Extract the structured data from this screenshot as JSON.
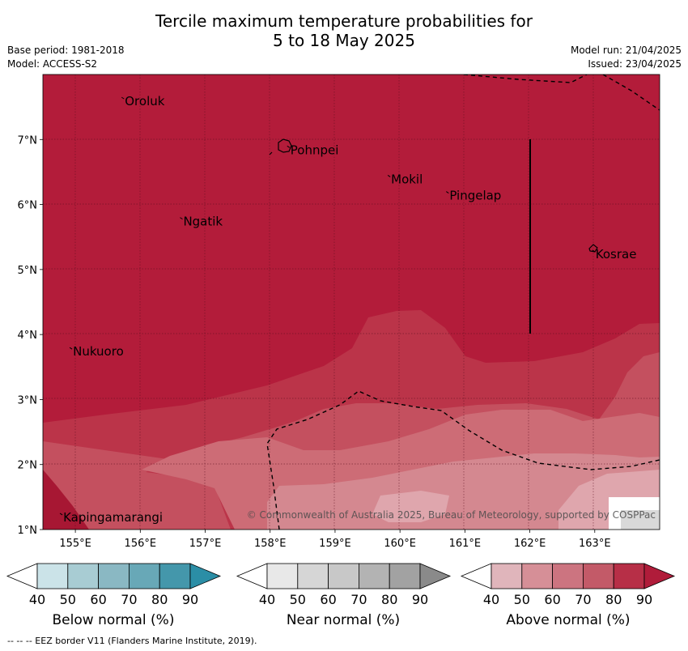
{
  "header": {
    "title_line1": "Tercile maximum temperature probabilities for",
    "title_line2": "5 to 18 May 2025",
    "base_period": "Base period: 1981-2018",
    "model": "Model: ACCESS-S2",
    "model_run": "Model run: 21/04/2025",
    "issued": "Issued: 23/04/2025"
  },
  "map": {
    "lon_range": [
      154.5,
      164
    ],
    "lat_range": [
      1,
      8
    ],
    "lon_ticks": [
      "155°E",
      "156°E",
      "157°E",
      "158°E",
      "159°E",
      "160°E",
      "161°E",
      "162°E",
      "163°E"
    ],
    "lat_ticks": [
      "1°N",
      "2°N",
      "3°N",
      "4°N",
      "5°N",
      "6°N",
      "7°N"
    ],
    "places": [
      {
        "name": "Oroluk",
        "lon": 155.75,
        "lat": 7.6
      },
      {
        "name": "Pohnpei",
        "lon": 158.3,
        "lat": 6.85
      },
      {
        "name": "Mokil",
        "lon": 159.85,
        "lat": 6.4
      },
      {
        "name": "Pingelap",
        "lon": 160.75,
        "lat": 6.15
      },
      {
        "name": "Ngatik",
        "lon": 156.65,
        "lat": 5.75
      },
      {
        "name": "Kosrae",
        "lon": 163.0,
        "lat": 5.25
      },
      {
        "name": "Nukuoro",
        "lon": 154.95,
        "lat": 3.75
      },
      {
        "name": "Kapingamarangi",
        "lon": 154.8,
        "lat": 1.2
      }
    ],
    "copyright": "© Commonwealth of Australia 2025, Bureau of Meteorology, supported by COSPPac",
    "colors": {
      "above_80_90": "#b31c3a",
      "above_70_80": "#bb3449",
      "above_60_70": "#c4505f",
      "above_50_60": "#cd6c76",
      "above_40_50": "#d48890",
      "above_edge": "#dfa6ad"
    }
  },
  "colorbars": [
    {
      "label": "Below normal (%)",
      "ticks": [
        "40",
        "50",
        "60",
        "70",
        "80",
        "90"
      ],
      "colors": [
        "#cbe3e8",
        "#a8ccd3",
        "#8ab8c3",
        "#68a8b7",
        "#4497ab",
        "#2b8ea6"
      ]
    },
    {
      "label": "Near normal (%)",
      "ticks": [
        "40",
        "50",
        "60",
        "70",
        "80",
        "90"
      ],
      "colors": [
        "#e8e8e8",
        "#d6d6d6",
        "#c8c8c8",
        "#b3b3b3",
        "#a2a2a2",
        "#8a8a8a"
      ]
    },
    {
      "label": "Above normal (%)",
      "ticks": [
        "40",
        "50",
        "60",
        "70",
        "80",
        "90"
      ],
      "colors": [
        "#e0b5bb",
        "#d68f97",
        "#cc7480",
        "#c35a68",
        "#b72f47",
        "#b01c3a"
      ]
    }
  ],
  "footer": "--  --  -- EEZ border V11 (Flanders Marine Institute, 2019)."
}
